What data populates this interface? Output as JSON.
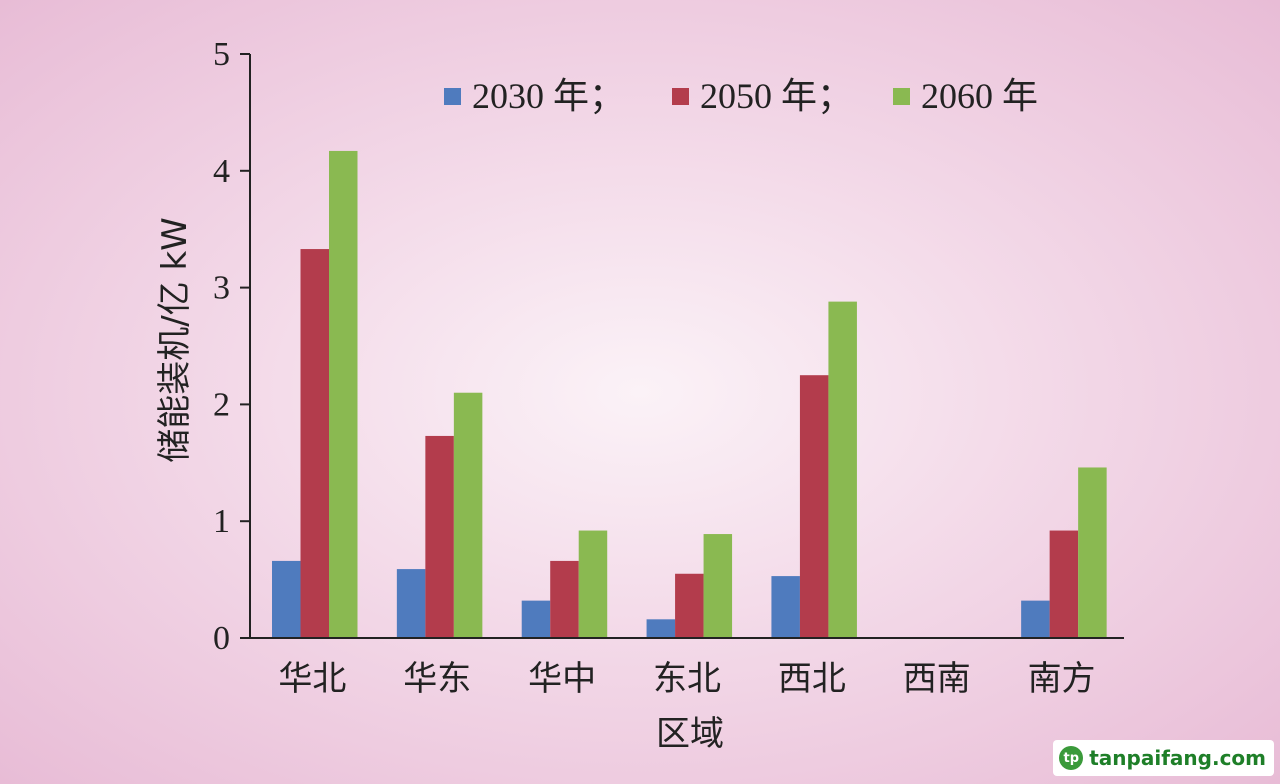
{
  "chart_data": {
    "type": "bar",
    "categories": [
      "华北",
      "华东",
      "华中",
      "东北",
      "西北",
      "西南",
      "南方"
    ],
    "series": [
      {
        "name": "2030 年；",
        "color": "#4f7bbe",
        "values": [
          0.66,
          0.59,
          0.32,
          0.16,
          0.53,
          0,
          0.32
        ]
      },
      {
        "name": "2050 年；",
        "color": "#b33c4c",
        "values": [
          3.33,
          1.73,
          0.66,
          0.55,
          2.25,
          0,
          0.92
        ]
      },
      {
        "name": "2060 年",
        "color": "#8ab951",
        "values": [
          4.17,
          2.1,
          0.92,
          0.89,
          2.88,
          0,
          1.46
        ]
      }
    ],
    "xlabel": "区域",
    "ylabel": "储能装机/亿 kW",
    "ylim": [
      0,
      5
    ],
    "yticks": [
      0,
      1,
      2,
      3,
      4,
      5
    ],
    "grid": false,
    "legend": "top"
  },
  "watermark": {
    "logo": "tp",
    "text": "tanpaifang.com"
  }
}
